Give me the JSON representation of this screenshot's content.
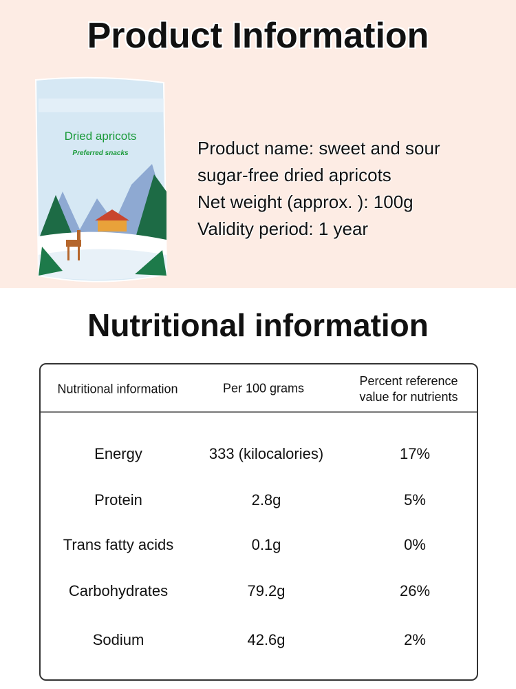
{
  "product_section": {
    "title": "Product Information",
    "package": {
      "name": "Dried apricots",
      "tagline": "Preferred snacks"
    },
    "lines": [
      "Product name: sweet and sour",
      "sugar-free dried apricots",
      "Net weight (approx. ): 100g",
      "Validity period: 1 year"
    ]
  },
  "nutrition_section": {
    "title": "Nutritional information",
    "headers": [
      "Nutritional information",
      "Per 100 grams",
      "Percent reference value for nutrients"
    ],
    "rows": [
      {
        "name": "Energy",
        "per100": "333 (kilocalories)",
        "nrv": "17%"
      },
      {
        "name": "Protein",
        "per100": "2.8g",
        "nrv": "5%"
      },
      {
        "name": "Trans fatty acids",
        "per100": "0.1g",
        "nrv": "0%"
      },
      {
        "name": "Carbohydrates",
        "per100": "79.2g",
        "nrv": "26%"
      },
      {
        "name": "Sodium",
        "per100": "42.6g",
        "nrv": "2%"
      }
    ]
  }
}
